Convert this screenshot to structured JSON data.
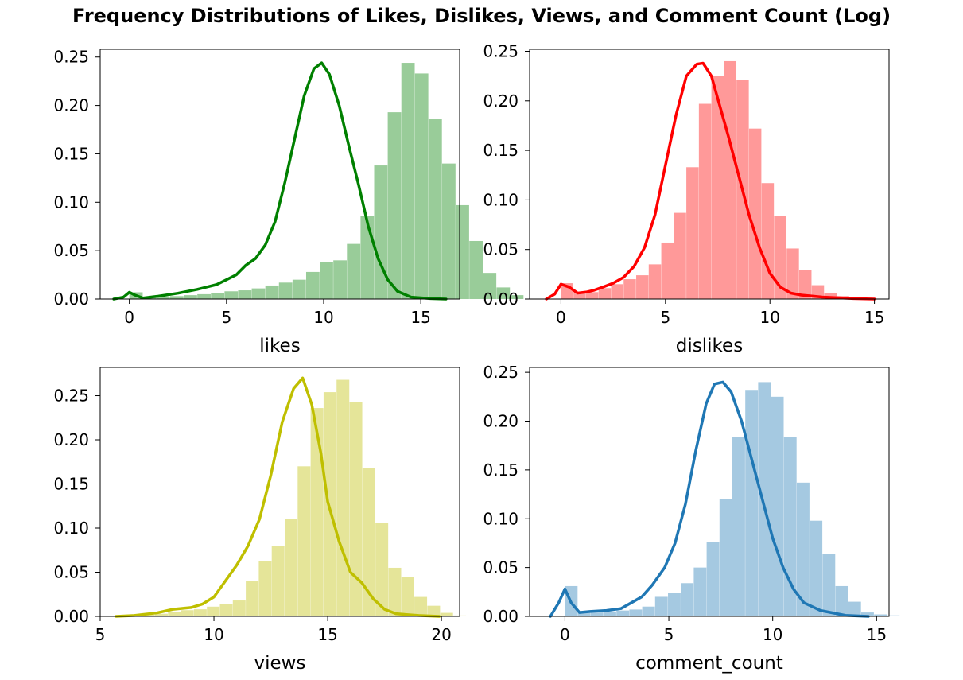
{
  "figure": {
    "title": "Frequency Distributions of Likes, Dislikes, Views, and Comment Count (Log)"
  },
  "chart_data": [
    {
      "type": "bar",
      "subtype": "histogram-with-kde",
      "xlabel": "likes",
      "ylabel": "",
      "color": "#008000",
      "xlim": [
        -1.5,
        17
      ],
      "ylim": [
        0,
        0.258
      ],
      "xticks": [
        0,
        5,
        10,
        15
      ],
      "yticks": [
        0,
        0.05,
        0.1,
        0.15,
        0.2,
        0.25
      ],
      "ytick_labels": [
        "0.00",
        "0.05",
        "0.10",
        "0.15",
        "0.20",
        "0.25"
      ],
      "bins": {
        "start": 0,
        "width": 0.7,
        "values": [
          0.007,
          0.002,
          0.002,
          0.003,
          0.004,
          0.005,
          0.006,
          0.008,
          0.009,
          0.011,
          0.014,
          0.017,
          0.02,
          0.028,
          0.038,
          0.04,
          0.057,
          0.086,
          0.138,
          0.193,
          0.244,
          0.233,
          0.186,
          0.14,
          0.097,
          0.06,
          0.027,
          0.012,
          0.004
        ]
      },
      "kde": {
        "x": [
          -0.8,
          -0.3,
          0,
          0.3,
          0.7,
          1.5,
          2.5,
          3.5,
          4.5,
          5.0,
          5.5,
          6.0,
          6.5,
          7.0,
          7.5,
          8.0,
          8.5,
          9.0,
          9.5,
          9.9,
          10.3,
          10.8,
          11.3,
          11.8,
          12.3,
          12.8,
          13.3,
          13.8,
          14.5,
          15.5,
          16.3
        ],
        "y": [
          0.0,
          0.002,
          0.007,
          0.004,
          0.001,
          0.003,
          0.006,
          0.01,
          0.015,
          0.02,
          0.025,
          0.035,
          0.042,
          0.056,
          0.08,
          0.12,
          0.165,
          0.21,
          0.238,
          0.244,
          0.232,
          0.2,
          0.158,
          0.118,
          0.075,
          0.042,
          0.02,
          0.008,
          0.002,
          0.0005,
          0
        ]
      }
    },
    {
      "type": "bar",
      "subtype": "histogram-with-kde",
      "xlabel": "dislikes",
      "ylabel": "",
      "color": "#ff0000",
      "xlim": [
        -1.5,
        15.7
      ],
      "ylim": [
        0,
        0.252
      ],
      "xticks": [
        0,
        5,
        10,
        15
      ],
      "yticks": [
        0,
        0.05,
        0.1,
        0.15,
        0.2,
        0.25
      ],
      "ytick_labels": [
        "0.00",
        "0.05",
        "0.10",
        "0.15",
        "0.20",
        "0.25"
      ],
      "bins": {
        "start": 0,
        "width": 0.6,
        "values": [
          0.016,
          0.007,
          0.007,
          0.011,
          0.015,
          0.02,
          0.024,
          0.035,
          0.057,
          0.087,
          0.133,
          0.197,
          0.225,
          0.24,
          0.221,
          0.172,
          0.117,
          0.084,
          0.051,
          0.029,
          0.014,
          0.006,
          0.003,
          0.001
        ]
      },
      "kde": {
        "x": [
          -0.7,
          -0.3,
          0,
          0.4,
          0.8,
          1.2,
          1.6,
          2.0,
          2.5,
          3.0,
          3.5,
          4.0,
          4.5,
          5.0,
          5.5,
          6.0,
          6.5,
          6.8,
          7.2,
          7.6,
          8.0,
          8.5,
          9.0,
          9.5,
          10.0,
          10.5,
          11.0,
          11.5,
          12.5,
          14.0,
          15.0
        ],
        "y": [
          0.0,
          0.005,
          0.015,
          0.012,
          0.006,
          0.007,
          0.009,
          0.012,
          0.016,
          0.022,
          0.033,
          0.052,
          0.085,
          0.135,
          0.185,
          0.225,
          0.237,
          0.238,
          0.225,
          0.195,
          0.165,
          0.125,
          0.085,
          0.052,
          0.026,
          0.012,
          0.006,
          0.004,
          0.002,
          0.0005,
          0
        ]
      }
    },
    {
      "type": "bar",
      "subtype": "histogram-with-kde",
      "xlabel": "views",
      "ylabel": "",
      "color": "#bfbf00",
      "xlim": [
        5,
        20.8
      ],
      "ylim": [
        0,
        0.282
      ],
      "xticks": [
        5,
        10,
        15,
        20
      ],
      "yticks": [
        0,
        0.05,
        0.1,
        0.15,
        0.2,
        0.25
      ],
      "ytick_labels": [
        "0.00",
        "0.05",
        "0.10",
        "0.15",
        "0.20",
        "0.25"
      ],
      "bins": {
        "start": 5.7,
        "width": 0.57,
        "values": [
          0.001,
          0.001,
          0.002,
          0.003,
          0.005,
          0.007,
          0.008,
          0.011,
          0.014,
          0.018,
          0.04,
          0.063,
          0.08,
          0.11,
          0.17,
          0.236,
          0.254,
          0.268,
          0.243,
          0.168,
          0.106,
          0.055,
          0.045,
          0.022,
          0.012,
          0.004,
          0.001,
          0.0005
        ]
      },
      "kde": {
        "x": [
          5.7,
          6.5,
          7.5,
          8.2,
          9.0,
          9.5,
          10.0,
          10.5,
          11.0,
          11.5,
          12.0,
          12.5,
          13.0,
          13.5,
          13.9,
          14.3,
          14.7,
          15.0,
          15.5,
          16.0,
          16.5,
          17.0,
          17.5,
          18.0,
          19.0,
          19.9
        ],
        "y": [
          0.0,
          0.001,
          0.004,
          0.008,
          0.01,
          0.014,
          0.022,
          0.04,
          0.058,
          0.08,
          0.11,
          0.16,
          0.22,
          0.258,
          0.27,
          0.24,
          0.185,
          0.13,
          0.085,
          0.05,
          0.038,
          0.02,
          0.008,
          0.003,
          0.001,
          0
        ]
      }
    },
    {
      "type": "bar",
      "subtype": "histogram-with-kde",
      "xlabel": "comment_count",
      "ylabel": "",
      "color": "#1f77b4",
      "xlim": [
        -1.7,
        15.6
      ],
      "ylim": [
        0,
        0.255
      ],
      "xticks": [
        0,
        5,
        10,
        15
      ],
      "yticks": [
        0,
        0.05,
        0.1,
        0.15,
        0.2,
        0.25
      ],
      "ytick_labels": [
        "0.00",
        "0.05",
        "0.10",
        "0.15",
        "0.20",
        "0.25"
      ],
      "bins": {
        "start": 0,
        "width": 0.62,
        "values": [
          0.031,
          0.004,
          0.004,
          0.005,
          0.006,
          0.007,
          0.01,
          0.02,
          0.024,
          0.034,
          0.05,
          0.076,
          0.12,
          0.184,
          0.232,
          0.24,
          0.225,
          0.184,
          0.137,
          0.098,
          0.064,
          0.031,
          0.015,
          0.004,
          0.002,
          0.001
        ]
      },
      "kde": {
        "x": [
          -0.7,
          -0.3,
          0,
          0.3,
          0.7,
          1.2,
          2.0,
          2.7,
          3.2,
          3.7,
          4.2,
          4.8,
          5.3,
          5.8,
          6.3,
          6.8,
          7.2,
          7.6,
          8.0,
          8.5,
          9.0,
          9.5,
          10.0,
          10.5,
          11.0,
          11.5,
          12.3,
          13.5,
          14.6
        ],
        "y": [
          0.0,
          0.014,
          0.028,
          0.014,
          0.004,
          0.005,
          0.006,
          0.008,
          0.014,
          0.02,
          0.032,
          0.05,
          0.075,
          0.115,
          0.17,
          0.218,
          0.238,
          0.24,
          0.23,
          0.2,
          0.16,
          0.12,
          0.08,
          0.05,
          0.028,
          0.014,
          0.006,
          0.001,
          0
        ]
      }
    }
  ]
}
